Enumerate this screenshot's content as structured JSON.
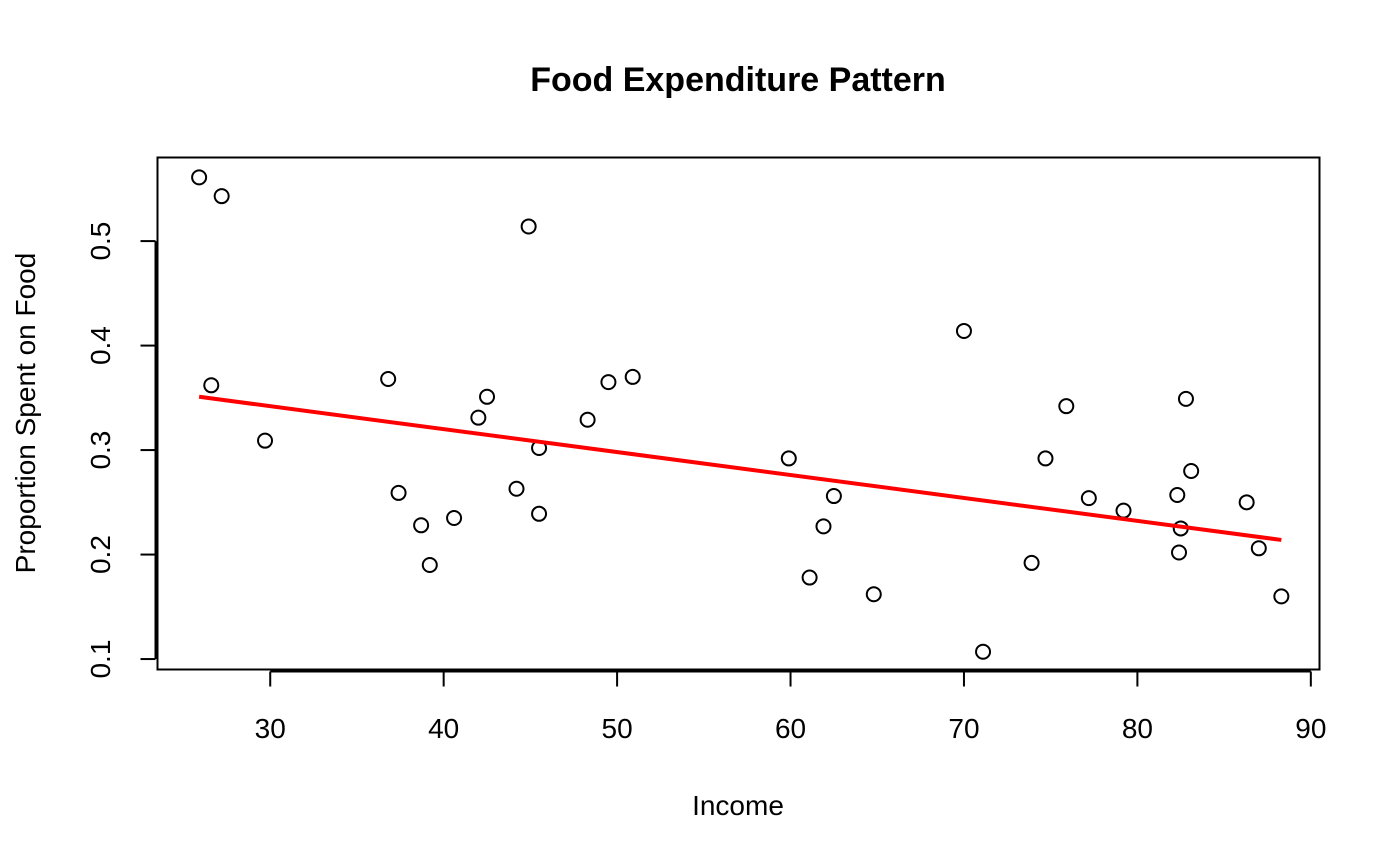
{
  "chart_data": {
    "type": "scatter",
    "title": "Food Expenditure Pattern",
    "xlabel": "Income",
    "ylabel": "Proportion Spent on Food",
    "xlim": [
      23.5,
      90.5
    ],
    "ylim": [
      0.09,
      0.58
    ],
    "x_ticks": [
      30,
      40,
      50,
      60,
      70,
      80,
      90
    ],
    "x_tick_labels": [
      "30",
      "40",
      "50",
      "60",
      "70",
      "80",
      "90"
    ],
    "y_ticks": [
      0.1,
      0.2,
      0.3,
      0.4,
      0.5
    ],
    "y_tick_labels": [
      "0.1",
      "0.2",
      "0.3",
      "0.4",
      "0.5"
    ],
    "grid": false,
    "legend": "none",
    "point_color": "#000000",
    "series": [
      {
        "points": [
          {
            "x": 25.9,
            "y": 0.561
          },
          {
            "x": 27.2,
            "y": 0.543
          },
          {
            "x": 26.6,
            "y": 0.362
          },
          {
            "x": 29.7,
            "y": 0.309
          },
          {
            "x": 36.8,
            "y": 0.368
          },
          {
            "x": 37.4,
            "y": 0.259
          },
          {
            "x": 38.7,
            "y": 0.228
          },
          {
            "x": 39.2,
            "y": 0.19
          },
          {
            "x": 40.6,
            "y": 0.235
          },
          {
            "x": 42.0,
            "y": 0.331
          },
          {
            "x": 42.5,
            "y": 0.351
          },
          {
            "x": 44.2,
            "y": 0.263
          },
          {
            "x": 44.9,
            "y": 0.514
          },
          {
            "x": 45.5,
            "y": 0.302
          },
          {
            "x": 45.5,
            "y": 0.239
          },
          {
            "x": 48.3,
            "y": 0.329
          },
          {
            "x": 49.5,
            "y": 0.365
          },
          {
            "x": 50.9,
            "y": 0.37
          },
          {
            "x": 59.9,
            "y": 0.292
          },
          {
            "x": 61.1,
            "y": 0.178
          },
          {
            "x": 61.9,
            "y": 0.227
          },
          {
            "x": 62.5,
            "y": 0.256
          },
          {
            "x": 64.8,
            "y": 0.162
          },
          {
            "x": 70.0,
            "y": 0.414
          },
          {
            "x": 71.1,
            "y": 0.107
          },
          {
            "x": 73.9,
            "y": 0.192
          },
          {
            "x": 74.7,
            "y": 0.292
          },
          {
            "x": 75.9,
            "y": 0.342
          },
          {
            "x": 77.2,
            "y": 0.254
          },
          {
            "x": 79.2,
            "y": 0.242
          },
          {
            "x": 82.3,
            "y": 0.257
          },
          {
            "x": 82.4,
            "y": 0.202
          },
          {
            "x": 82.5,
            "y": 0.225
          },
          {
            "x": 82.8,
            "y": 0.349
          },
          {
            "x": 83.1,
            "y": 0.28
          },
          {
            "x": 86.3,
            "y": 0.25
          },
          {
            "x": 87.0,
            "y": 0.206
          },
          {
            "x": 88.3,
            "y": 0.16
          }
        ]
      }
    ],
    "fit_line": {
      "color": "#ff0000",
      "x": [
        25.9,
        88.3
      ],
      "y": [
        0.351,
        0.214
      ]
    }
  }
}
